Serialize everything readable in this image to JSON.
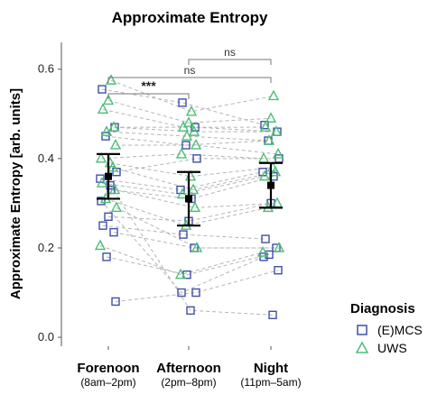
{
  "chart_data": {
    "type": "scatter",
    "title": "Approximate Entropy",
    "ylabel": "Approximate Entropy [arb. units]",
    "xlabel": "",
    "ylim": [
      -0.02,
      0.66
    ],
    "yticks": [
      "0.0",
      "0.2",
      "0.4",
      "0.6"
    ],
    "ytick_values": [
      0.0,
      0.2,
      0.4,
      0.6
    ],
    "categories": [
      "Forenoon",
      "Afternoon",
      "Night"
    ],
    "category_sublabels": [
      "(8am–2pm)",
      "(2pm–8pm)",
      "(11pm–5am)"
    ],
    "legend": {
      "title": "Diagnosis",
      "position": "right",
      "entries": [
        {
          "label": "(E)MCS",
          "marker": "square",
          "color": "#3f4fa8"
        },
        {
          "label": "UWS",
          "marker": "triangle",
          "color": "#4cbf78"
        }
      ]
    },
    "summary": {
      "means": [
        0.36,
        0.31,
        0.34
      ],
      "lower": [
        0.31,
        0.25,
        0.29
      ],
      "upper": [
        0.41,
        0.37,
        0.39
      ],
      "color": "#000000"
    },
    "significance": [
      {
        "from": 0,
        "to": 1,
        "label": "***",
        "level": 1
      },
      {
        "from": 0,
        "to": 2,
        "label": "ns",
        "level": 2
      },
      {
        "from": 1,
        "to": 2,
        "label": "ns",
        "level": 3
      }
    ],
    "series": [
      {
        "name": "(E)MCS",
        "marker": "square",
        "color": "#3f4fa8",
        "subjects": [
          [
            0.555,
            0.525,
            0.475
          ],
          [
            0.47,
            0.47,
            0.46
          ],
          [
            0.45,
            0.43,
            0.44
          ],
          [
            0.37,
            0.4,
            0.4
          ],
          [
            0.355,
            0.33,
            0.37
          ],
          [
            0.33,
            0.31,
            0.36
          ],
          [
            0.27,
            0.26,
            0.3
          ],
          [
            0.25,
            0.23,
            0.22
          ],
          [
            0.235,
            0.2,
            0.2
          ],
          [
            0.18,
            0.14,
            0.185
          ],
          [
            0.08,
            0.1,
            0.15
          ],
          [
            0.305,
            0.1,
            0.18
          ],
          [
            0.34,
            0.06,
            0.05
          ]
        ]
      },
      {
        "name": "UWS",
        "marker": "triangle",
        "color": "#4cbf78",
        "subjects": [
          [
            0.575,
            0.505,
            0.54
          ],
          [
            0.53,
            0.48,
            0.49
          ],
          [
            0.51,
            0.47,
            0.47
          ],
          [
            0.47,
            0.46,
            0.46
          ],
          [
            0.46,
            0.45,
            0.44
          ],
          [
            0.43,
            0.43,
            0.41
          ],
          [
            0.4,
            0.41,
            0.4
          ],
          [
            0.39,
            0.36,
            0.38
          ],
          [
            0.38,
            0.33,
            0.37
          ],
          [
            0.345,
            0.32,
            0.36
          ],
          [
            0.33,
            0.29,
            0.3
          ],
          [
            0.31,
            0.25,
            0.29
          ],
          [
            0.29,
            0.2,
            0.2
          ],
          [
            0.205,
            0.14,
            0.19
          ]
        ]
      }
    ]
  }
}
